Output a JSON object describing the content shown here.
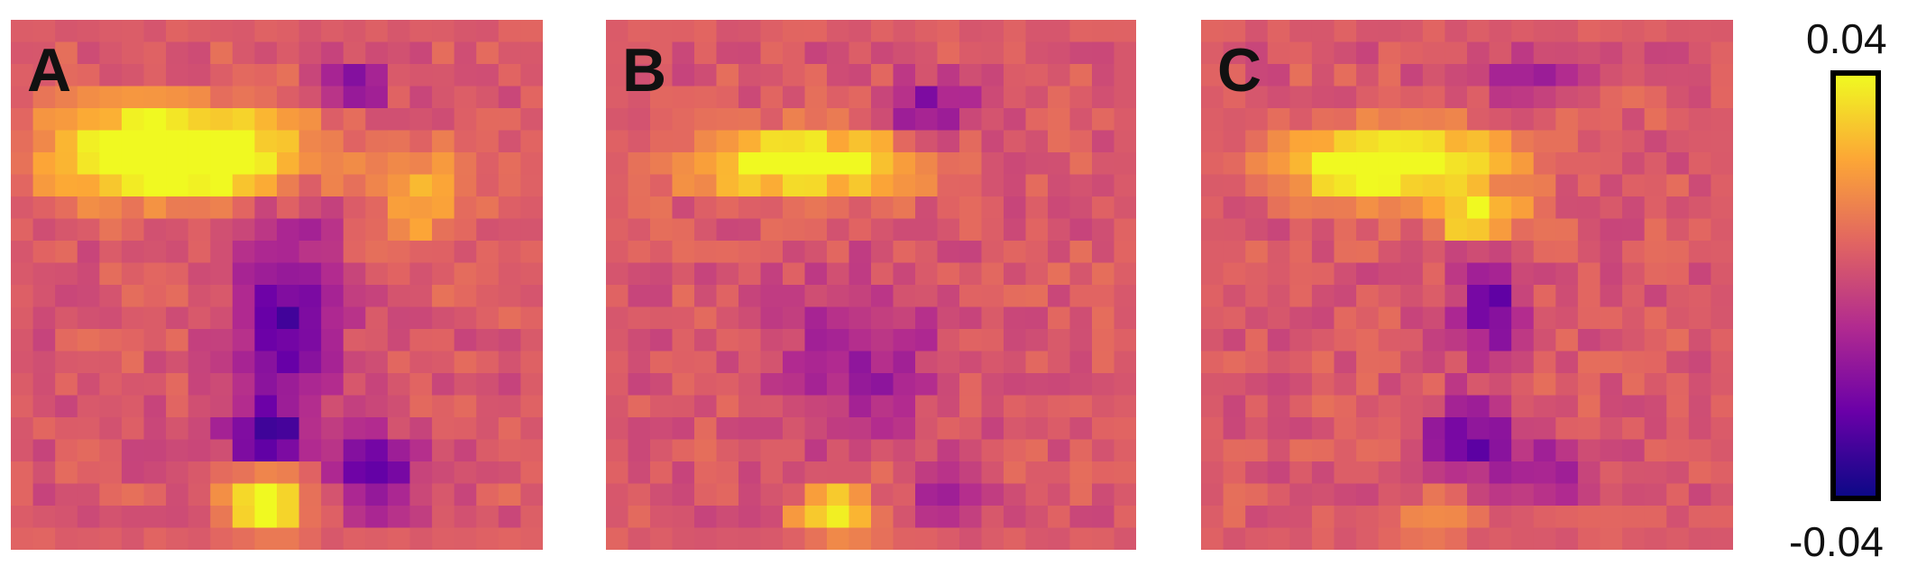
{
  "chart_data": {
    "type": "heatmap",
    "colormap": "plasma",
    "grid_size": [
      24,
      24
    ],
    "value_range": [
      -0.04,
      0.04
    ],
    "panels": [
      {
        "label": "A",
        "hot_blobs": [
          {
            "row": 5.5,
            "col": 7.0,
            "rrow": 2.0,
            "rcol": 5.5,
            "amp": 0.06
          },
          {
            "row": 7.5,
            "col": 18.0,
            "rrow": 2.5,
            "rcol": 2.0,
            "amp": 0.02
          },
          {
            "row": 21.5,
            "col": 11.0,
            "rrow": 1.8,
            "rcol": 1.8,
            "amp": 0.045
          }
        ],
        "cold_blobs": [
          {
            "row": 13.0,
            "col": 12.0,
            "rrow": 4.5,
            "rcol": 2.2,
            "amp": -0.03
          },
          {
            "row": 18.5,
            "col": 11.0,
            "rrow": 1.6,
            "rcol": 2.0,
            "amp": -0.03
          },
          {
            "row": 20.0,
            "col": 16.0,
            "rrow": 1.8,
            "rcol": 1.8,
            "amp": -0.032
          },
          {
            "row": 2.5,
            "col": 15.0,
            "rrow": 1.0,
            "rcol": 1.5,
            "amp": -0.03
          }
        ]
      },
      {
        "label": "B",
        "hot_blobs": [
          {
            "row": 6.0,
            "col": 8.5,
            "rrow": 1.4,
            "rcol": 5.0,
            "amp": 0.045
          },
          {
            "row": 22.0,
            "col": 10.0,
            "rrow": 1.5,
            "rcol": 1.8,
            "amp": 0.035
          }
        ],
        "cold_blobs": [
          {
            "row": 15.0,
            "col": 11.0,
            "rrow": 3.5,
            "rcol": 3.5,
            "amp": -0.018
          },
          {
            "row": 21.0,
            "col": 15.0,
            "rrow": 1.5,
            "rcol": 1.5,
            "amp": -0.02
          },
          {
            "row": 3.5,
            "col": 14.0,
            "rrow": 1.2,
            "rcol": 2.0,
            "amp": -0.025
          }
        ]
      },
      {
        "label": "C",
        "hot_blobs": [
          {
            "row": 6.0,
            "col": 8.0,
            "rrow": 1.6,
            "rcol": 5.0,
            "amp": 0.05
          },
          {
            "row": 8.5,
            "col": 12.0,
            "rrow": 1.0,
            "rcol": 2.0,
            "amp": 0.04
          },
          {
            "row": 22.5,
            "col": 10.0,
            "rrow": 1.2,
            "rcol": 1.5,
            "amp": 0.02
          }
        ],
        "cold_blobs": [
          {
            "row": 12.5,
            "col": 12.5,
            "rrow": 2.5,
            "rcol": 1.5,
            "amp": -0.03
          },
          {
            "row": 18.5,
            "col": 11.5,
            "rrow": 1.5,
            "rcol": 2.0,
            "amp": -0.03
          },
          {
            "row": 20.0,
            "col": 15.0,
            "rrow": 1.2,
            "rcol": 1.8,
            "amp": -0.02
          },
          {
            "row": 2.0,
            "col": 14.0,
            "rrow": 1.0,
            "rcol": 2.0,
            "amp": -0.02
          }
        ]
      }
    ],
    "colorbar": {
      "max_label": "0.04",
      "min_label": "-0.04",
      "stops": [
        "#0d0887",
        "#6a00a8",
        "#b12a90",
        "#e16462",
        "#fca636",
        "#f0f921"
      ]
    }
  }
}
